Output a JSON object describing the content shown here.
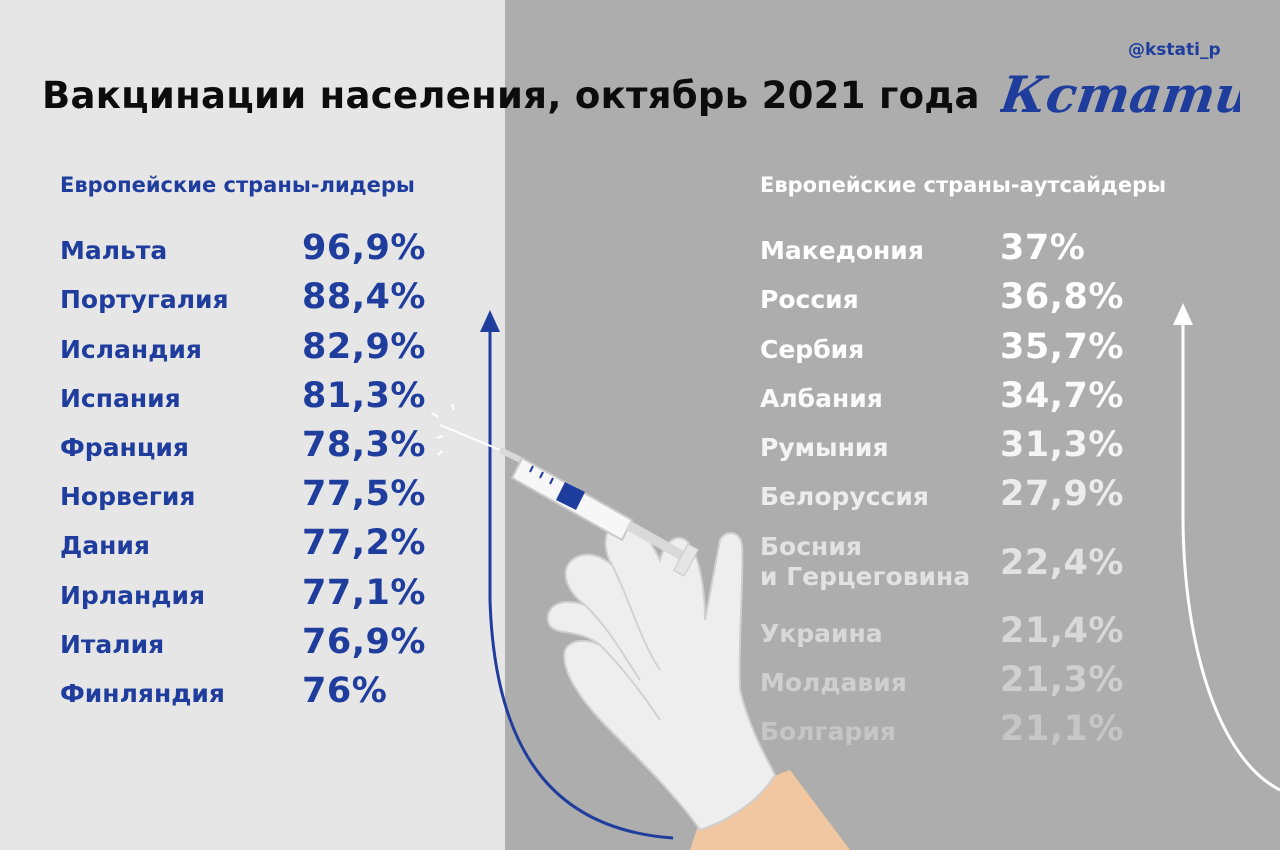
{
  "title": "Вакцинации населения, октябрь 2021 года",
  "brand": {
    "handle": "@kstati_p",
    "logo_text": "Кстати,"
  },
  "colors": {
    "accent_blue": "#1f3d9d",
    "left_bg": "#e6e6e7",
    "right_bg": "#adadad"
  },
  "leaders": {
    "heading": "Европейские страны-лидеры",
    "rows": [
      {
        "country": "Мальта",
        "value": "96,9%"
      },
      {
        "country": "Португалия",
        "value": "88,4%"
      },
      {
        "country": "Исландия",
        "value": "82,9%"
      },
      {
        "country": "Испания",
        "value": "81,3%"
      },
      {
        "country": "Франция",
        "value": "78,3%"
      },
      {
        "country": "Норвегия",
        "value": "77,5%"
      },
      {
        "country": "Дания",
        "value": "77,2%"
      },
      {
        "country": "Ирландия",
        "value": "77,1%"
      },
      {
        "country": "Италия",
        "value": "76,9%"
      },
      {
        "country": "Финляндия",
        "value": "76%"
      }
    ]
  },
  "outsiders": {
    "heading": "Европейские страны-аутсайдеры",
    "rows": [
      {
        "country": "Македония",
        "value": "37%"
      },
      {
        "country": "Россия",
        "value": "36,8%"
      },
      {
        "country": "Сербия",
        "value": "35,7%"
      },
      {
        "country": "Албания",
        "value": "34,7%"
      },
      {
        "country": "Румыния",
        "value": "31,3%"
      },
      {
        "country": "Белоруссия",
        "value": "27,9%"
      },
      {
        "country_line1": "Босния",
        "country_line2": "и Герцеговина",
        "value": "22,4%"
      },
      {
        "country": "Украина",
        "value": "21,4%"
      },
      {
        "country": "Молдавия",
        "value": "21,3%"
      },
      {
        "country": "Болгария",
        "value": "21,1%"
      }
    ]
  },
  "illustration": {
    "icons": [
      "syringe-icon",
      "gloved-hand-icon",
      "up-arrow-icon"
    ]
  }
}
